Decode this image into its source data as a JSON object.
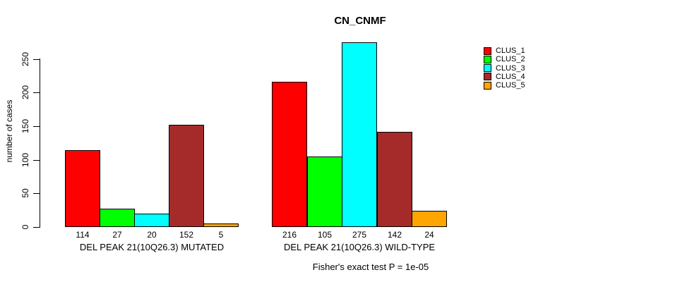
{
  "chart_data": {
    "type": "bar",
    "title": "CN_CNMF",
    "ylabel": "number of cases",
    "xlabel": "",
    "ylim": [
      0,
      250
    ],
    "yticks": [
      0,
      50,
      100,
      150,
      200,
      250
    ],
    "grid": false,
    "legend_position": "top-right",
    "categories": [
      "DEL PEAK 21(10Q26.3) MUTATED",
      "DEL PEAK 21(10Q26.3) WILD-TYPE"
    ],
    "series": [
      {
        "name": "CLUS_1",
        "color": "#FF0000",
        "values": [
          114,
          216
        ]
      },
      {
        "name": "CLUS_2",
        "color": "#00FF00",
        "values": [
          27,
          105
        ]
      },
      {
        "name": "CLUS_3",
        "color": "#00FFFF",
        "values": [
          20,
          275
        ]
      },
      {
        "name": "CLUS_4",
        "color": "#A52A2A",
        "values": [
          152,
          142
        ]
      },
      {
        "name": "CLUS_5",
        "color": "#FFA500",
        "values": [
          5,
          24
        ]
      }
    ],
    "bar_value_labels": [
      [
        114,
        27,
        20,
        152,
        5
      ],
      [
        216,
        105,
        275,
        142,
        24
      ]
    ],
    "annotation": "Fisher's exact test P = 1e-05"
  },
  "colors": {
    "background": "#FFFFFF",
    "axis": "#000000",
    "text": "#000000"
  }
}
